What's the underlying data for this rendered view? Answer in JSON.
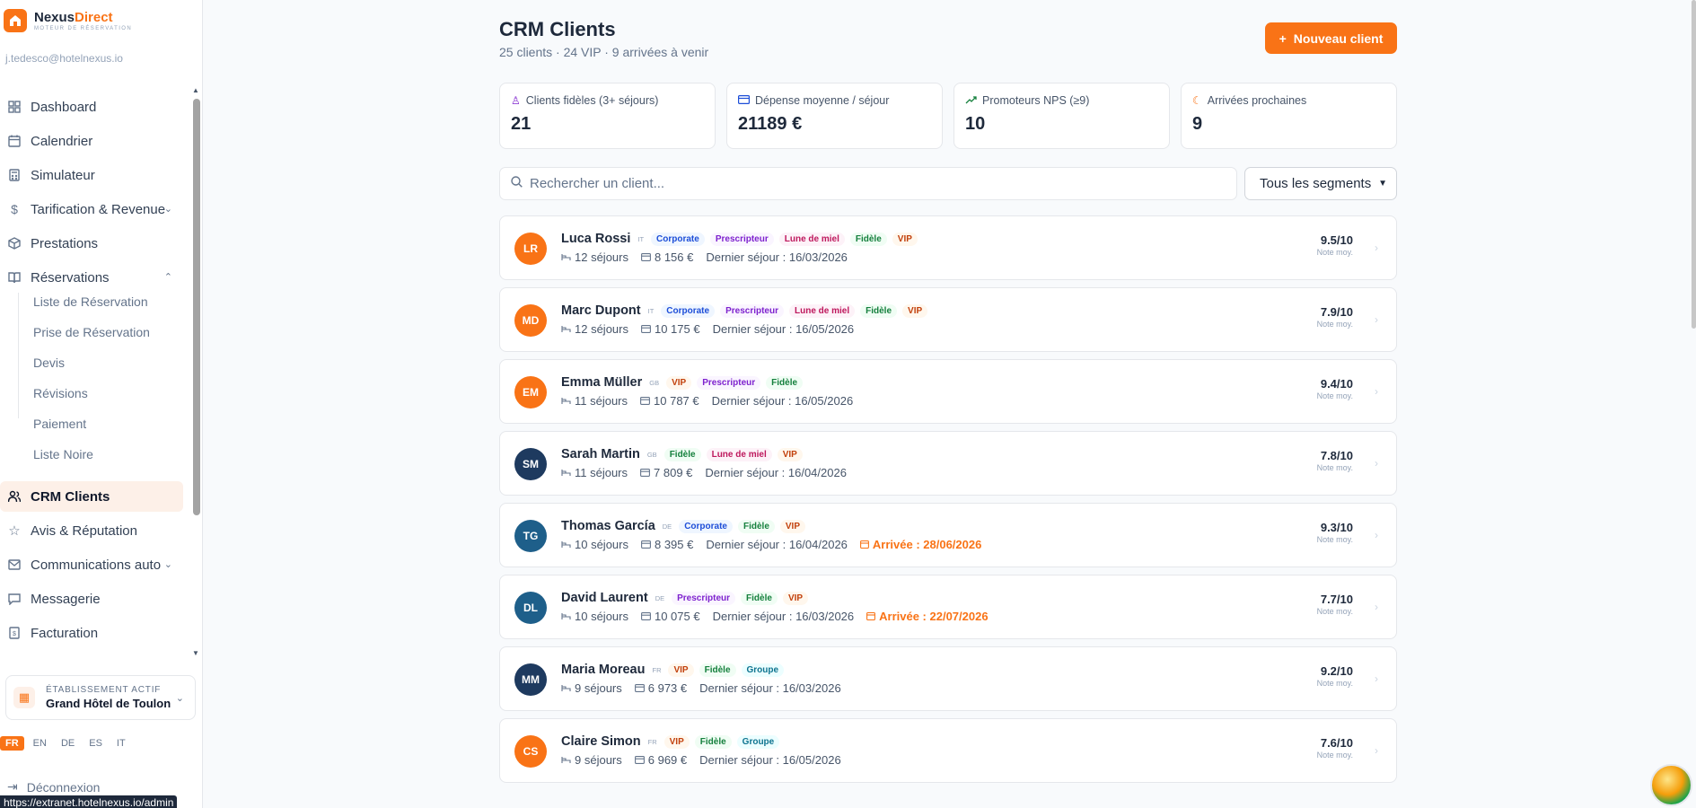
{
  "brand": {
    "name_main": "Nexus",
    "name_accent": "Direct",
    "tagline": "MOTEUR DE RÉSERVATION"
  },
  "user": {
    "email": "j.tedesco@hotelnexus.io"
  },
  "nav": {
    "dashboard": "Dashboard",
    "calendar": "Calendrier",
    "simulator": "Simulateur",
    "pricing": "Tarification & Revenue",
    "services": "Prestations",
    "reservations": "Réservations",
    "sub": [
      "Liste de Réservation",
      "Prise de Réservation",
      "Devis",
      "Révisions",
      "Paiement",
      "Liste Noire"
    ],
    "crm": "CRM Clients",
    "reviews": "Avis & Réputation",
    "comms": "Communications auto",
    "messaging": "Messagerie",
    "billing": "Facturation"
  },
  "establishment": {
    "label": "ÉTABLISSEMENT ACTIF",
    "name": "Grand Hôtel de Toulon"
  },
  "languages": [
    "FR",
    "EN",
    "DE",
    "ES",
    "IT"
  ],
  "logout": "Déconnexion",
  "status_url": "https://extranet.hotelnexus.io/admin",
  "page": {
    "title": "CRM Clients",
    "subtitle": "25 clients · 24 VIP · 9 arrivées à venir",
    "new_button": "Nouveau client"
  },
  "stats": [
    {
      "label": "Clients fidèles (3+ séjours)",
      "value": "21"
    },
    {
      "label": "Dépense moyenne / séjour",
      "value": "21189 €"
    },
    {
      "label": "Promoteurs NPS (≥9)",
      "value": "10"
    },
    {
      "label": "Arrivées prochaines",
      "value": "9"
    }
  ],
  "search": {
    "placeholder": "Rechercher un client..."
  },
  "segment": {
    "selected": "Tous les segments"
  },
  "score_label": "Note moy.",
  "clients": [
    {
      "initials": "LR",
      "name": "Luca Rossi",
      "country": "IT",
      "color": "#f97316",
      "tags": [
        "Corporate",
        "Prescripteur",
        "Lune de miel",
        "Fidèle",
        "VIP"
      ],
      "stays": "12 séjours",
      "spend": "8 156 €",
      "last": "Dernier séjour : 16/03/2026",
      "arrival": "",
      "score": "9.5/10"
    },
    {
      "initials": "MD",
      "name": "Marc Dupont",
      "country": "IT",
      "color": "#f97316",
      "tags": [
        "Corporate",
        "Prescripteur",
        "Lune de miel",
        "Fidèle",
        "VIP"
      ],
      "stays": "12 séjours",
      "spend": "10 175 €",
      "last": "Dernier séjour : 16/05/2026",
      "arrival": "",
      "score": "7.9/10"
    },
    {
      "initials": "EM",
      "name": "Emma Müller",
      "country": "GB",
      "color": "#f97316",
      "tags": [
        "VIP",
        "Prescripteur",
        "Fidèle"
      ],
      "stays": "11 séjours",
      "spend": "10 787 €",
      "last": "Dernier séjour : 16/05/2026",
      "arrival": "",
      "score": "9.4/10"
    },
    {
      "initials": "SM",
      "name": "Sarah Martin",
      "country": "GB",
      "color": "#1e3a5f",
      "tags": [
        "Fidèle",
        "Lune de miel",
        "VIP"
      ],
      "stays": "11 séjours",
      "spend": "7 809 €",
      "last": "Dernier séjour : 16/04/2026",
      "arrival": "",
      "score": "7.8/10"
    },
    {
      "initials": "TG",
      "name": "Thomas García",
      "country": "DE",
      "color": "#1e5f8a",
      "tags": [
        "Corporate",
        "Fidèle",
        "VIP"
      ],
      "stays": "10 séjours",
      "spend": "8 395 €",
      "last": "Dernier séjour : 16/04/2026",
      "arrival": "Arrivée : 28/06/2026",
      "score": "9.3/10"
    },
    {
      "initials": "DL",
      "name": "David Laurent",
      "country": "DE",
      "color": "#1e5f8a",
      "tags": [
        "Prescripteur",
        "Fidèle",
        "VIP"
      ],
      "stays": "10 séjours",
      "spend": "10 075 €",
      "last": "Dernier séjour : 16/03/2026",
      "arrival": "Arrivée : 22/07/2026",
      "score": "7.7/10"
    },
    {
      "initials": "MM",
      "name": "Maria Moreau",
      "country": "FR",
      "color": "#1e3a5f",
      "tags": [
        "VIP",
        "Fidèle",
        "Groupe"
      ],
      "stays": "9 séjours",
      "spend": "6 973 €",
      "last": "Dernier séjour : 16/03/2026",
      "arrival": "",
      "score": "9.2/10"
    },
    {
      "initials": "CS",
      "name": "Claire Simon",
      "country": "FR",
      "color": "#f97316",
      "tags": [
        "VIP",
        "Fidèle",
        "Groupe"
      ],
      "stays": "9 séjours",
      "spend": "6 969 €",
      "last": "Dernier séjour : 16/05/2026",
      "arrival": "",
      "score": "7.6/10"
    }
  ]
}
